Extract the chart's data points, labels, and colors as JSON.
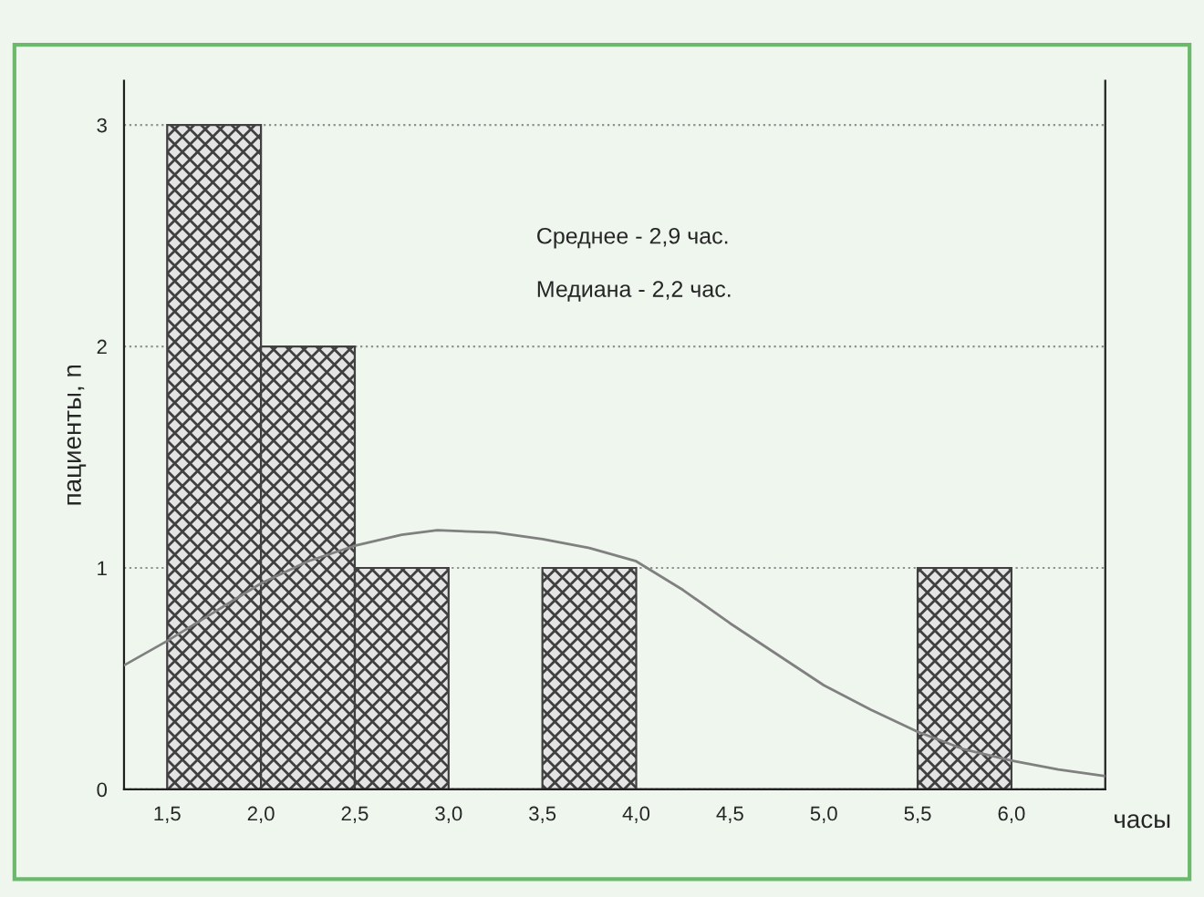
{
  "chart_data": {
    "type": "histogram",
    "xlabel": "часы",
    "ylabel": "пациенты, n",
    "bins": [
      1.5,
      2.0,
      2.5,
      3.0,
      3.5,
      4.0,
      4.5,
      5.0,
      5.5,
      6.0
    ],
    "values": [
      3,
      2,
      1,
      0,
      1,
      0,
      0,
      0,
      1
    ],
    "color": "#404040",
    "series": [
      {
        "type": "line",
        "color": "#808080",
        "x": [
          1.27,
          1.5,
          1.75,
          2.0,
          2.25,
          2.5,
          2.75,
          2.94,
          3.25,
          3.5,
          3.75,
          4.0,
          4.25,
          4.5,
          4.75,
          5.0,
          5.25,
          5.5,
          5.75,
          6.0,
          6.25,
          6.5
        ],
        "values": [
          0.56,
          0.67,
          0.8,
          0.93,
          1.03,
          1.1,
          1.15,
          1.17,
          1.16,
          1.13,
          1.09,
          1.03,
          0.9,
          0.75,
          0.61,
          0.47,
          0.36,
          0.26,
          0.18,
          0.13,
          0.09,
          0.06
        ]
      }
    ],
    "xlim": [
      1.27,
      6.5
    ],
    "ylim": [
      0,
      3.2
    ],
    "xticks": [
      {
        "value": 1.5,
        "label": "1,5"
      },
      {
        "value": 2.0,
        "label": "2,0"
      },
      {
        "value": 2.5,
        "label": "2,5"
      },
      {
        "value": 3.0,
        "label": "3,0"
      },
      {
        "value": 3.5,
        "label": "3,5"
      },
      {
        "value": 4.0,
        "label": "4,0"
      },
      {
        "value": 4.5,
        "label": "4,5"
      },
      {
        "value": 5.0,
        "label": "5,0"
      },
      {
        "value": 5.5,
        "label": "5,5"
      },
      {
        "value": 6.0,
        "label": "6,0"
      }
    ],
    "yticks": [
      0,
      1,
      2,
      3
    ],
    "grid": "y",
    "legend": false,
    "line_style": "solid",
    "annotations": [
      "Среднее - 2,9 час.",
      "Медиана - 2,2 час."
    ]
  }
}
